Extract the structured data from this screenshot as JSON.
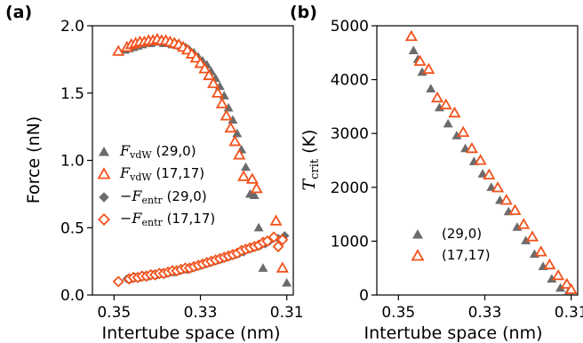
{
  "colors": {
    "gray": "#6b6b6b",
    "orange": "#f2521c"
  },
  "chart_data": [
    {
      "panel_label": "(a)",
      "type": "scatter",
      "xlabel": "Intertube space (nm)",
      "ylabel": "Force (nN)",
      "xlim": [
        0.355,
        0.3085
      ],
      "ylim": [
        0,
        2.0
      ],
      "xticks": [
        0.35,
        0.33,
        0.31
      ],
      "xticklabels": [
        "0.35",
        "0.33",
        "0.31"
      ],
      "yticks": [
        0,
        0.5,
        1.0,
        1.5,
        2.0
      ],
      "yticklabels": [
        "0.0",
        "0.5",
        "1.0",
        "1.5",
        "2.0"
      ],
      "legend_position": "center-left",
      "series": [
        {
          "name": "F_vdW (29,0)",
          "legend_math": "F",
          "legend_sub": "vdW",
          "legend_tag": "(29,0)",
          "marker": "triangle-filled",
          "color_key": "gray",
          "points": [
            [
              0.3475,
              1.82
            ],
            [
              0.3465,
              1.83
            ],
            [
              0.3455,
              1.84
            ],
            [
              0.3445,
              1.85
            ],
            [
              0.3435,
              1.86
            ],
            [
              0.3425,
              1.87
            ],
            [
              0.3415,
              1.87
            ],
            [
              0.3405,
              1.88
            ],
            [
              0.3395,
              1.88
            ],
            [
              0.3385,
              1.87
            ],
            [
              0.3375,
              1.87
            ],
            [
              0.3365,
              1.86
            ],
            [
              0.3355,
              1.86
            ],
            [
              0.3345,
              1.85
            ],
            [
              0.3335,
              1.84
            ],
            [
              0.3325,
              1.82
            ],
            [
              0.3315,
              1.8
            ],
            [
              0.3305,
              1.77
            ],
            [
              0.3295,
              1.74
            ],
            [
              0.3285,
              1.71
            ],
            [
              0.3275,
              1.66
            ],
            [
              0.3265,
              1.61
            ],
            [
              0.3255,
              1.55
            ],
            [
              0.3245,
              1.48
            ],
            [
              0.3235,
              1.39
            ],
            [
              0.3225,
              1.3
            ],
            [
              0.3215,
              1.2
            ],
            [
              0.3205,
              1.08
            ],
            [
              0.3195,
              0.95
            ],
            [
              0.3185,
              0.75
            ],
            [
              0.3175,
              0.74
            ],
            [
              0.3165,
              0.5
            ],
            [
              0.3155,
              0.2
            ],
            [
              0.31,
              0.09
            ]
          ]
        },
        {
          "name": "F_vdW (17,17)",
          "legend_math": "F",
          "legend_sub": "vdW",
          "legend_tag": "(17,17)",
          "marker": "triangle-open",
          "color_key": "orange",
          "points": [
            [
              0.349,
              1.81
            ],
            [
              0.347,
              1.84
            ],
            [
              0.346,
              1.86
            ],
            [
              0.345,
              1.87
            ],
            [
              0.344,
              1.88
            ],
            [
              0.343,
              1.88
            ],
            [
              0.342,
              1.89
            ],
            [
              0.341,
              1.89
            ],
            [
              0.34,
              1.9
            ],
            [
              0.339,
              1.89
            ],
            [
              0.338,
              1.89
            ],
            [
              0.337,
              1.88
            ],
            [
              0.336,
              1.87
            ],
            [
              0.335,
              1.86
            ],
            [
              0.334,
              1.84
            ],
            [
              0.333,
              1.82
            ],
            [
              0.332,
              1.79
            ],
            [
              0.331,
              1.76
            ],
            [
              0.33,
              1.72
            ],
            [
              0.329,
              1.68
            ],
            [
              0.328,
              1.63
            ],
            [
              0.327,
              1.57
            ],
            [
              0.326,
              1.5
            ],
            [
              0.325,
              1.42
            ],
            [
              0.324,
              1.33
            ],
            [
              0.323,
              1.24
            ],
            [
              0.322,
              1.14
            ],
            [
              0.321,
              1.04
            ],
            [
              0.32,
              0.88
            ],
            [
              0.318,
              0.86
            ],
            [
              0.317,
              0.79
            ],
            [
              0.3125,
              0.55
            ],
            [
              0.311,
              0.2
            ]
          ]
        },
        {
          "name": "-F_entr (29,0)",
          "legend_math": "−F",
          "legend_sub": "entr",
          "legend_tag": "(29,0)",
          "marker": "diamond-filled",
          "color_key": "gray",
          "points": [
            [
              0.347,
              0.12
            ],
            [
              0.346,
              0.12
            ],
            [
              0.345,
              0.13
            ],
            [
              0.344,
              0.13
            ],
            [
              0.343,
              0.14
            ],
            [
              0.342,
              0.14
            ],
            [
              0.341,
              0.15
            ],
            [
              0.34,
              0.15
            ],
            [
              0.339,
              0.16
            ],
            [
              0.338,
              0.16
            ],
            [
              0.337,
              0.17
            ],
            [
              0.336,
              0.17
            ],
            [
              0.335,
              0.18
            ],
            [
              0.334,
              0.19
            ],
            [
              0.333,
              0.19
            ],
            [
              0.332,
              0.2
            ],
            [
              0.331,
              0.21
            ],
            [
              0.33,
              0.22
            ],
            [
              0.329,
              0.23
            ],
            [
              0.328,
              0.24
            ],
            [
              0.327,
              0.25
            ],
            [
              0.326,
              0.26
            ],
            [
              0.325,
              0.27
            ],
            [
              0.324,
              0.28
            ],
            [
              0.323,
              0.29
            ],
            [
              0.322,
              0.3
            ],
            [
              0.321,
              0.31
            ],
            [
              0.32,
              0.32
            ],
            [
              0.319,
              0.34
            ],
            [
              0.318,
              0.35
            ],
            [
              0.317,
              0.36
            ],
            [
              0.316,
              0.37
            ],
            [
              0.315,
              0.38
            ],
            [
              0.314,
              0.4
            ],
            [
              0.312,
              0.42
            ],
            [
              0.3105,
              0.44
            ]
          ]
        },
        {
          "name": "-F_entr (17,17)",
          "legend_math": "−F",
          "legend_sub": "entr",
          "legend_tag": "(17,17)",
          "marker": "diamond-open",
          "color_key": "orange",
          "points": [
            [
              0.349,
              0.1
            ],
            [
              0.3465,
              0.12
            ],
            [
              0.3455,
              0.13
            ],
            [
              0.3445,
              0.13
            ],
            [
              0.3435,
              0.14
            ],
            [
              0.3425,
              0.14
            ],
            [
              0.3415,
              0.15
            ],
            [
              0.3405,
              0.15
            ],
            [
              0.3395,
              0.16
            ],
            [
              0.3385,
              0.16
            ],
            [
              0.3375,
              0.17
            ],
            [
              0.3365,
              0.18
            ],
            [
              0.3355,
              0.18
            ],
            [
              0.3345,
              0.19
            ],
            [
              0.3335,
              0.2
            ],
            [
              0.3325,
              0.2
            ],
            [
              0.3315,
              0.21
            ],
            [
              0.3305,
              0.22
            ],
            [
              0.3295,
              0.23
            ],
            [
              0.3285,
              0.24
            ],
            [
              0.3275,
              0.25
            ],
            [
              0.3265,
              0.26
            ],
            [
              0.3255,
              0.27
            ],
            [
              0.3245,
              0.28
            ],
            [
              0.3235,
              0.29
            ],
            [
              0.3225,
              0.3
            ],
            [
              0.3215,
              0.31
            ],
            [
              0.3205,
              0.33
            ],
            [
              0.3195,
              0.34
            ],
            [
              0.3185,
              0.35
            ],
            [
              0.3175,
              0.36
            ],
            [
              0.3165,
              0.37
            ],
            [
              0.3155,
              0.39
            ],
            [
              0.3145,
              0.4
            ],
            [
              0.313,
              0.43
            ],
            [
              0.312,
              0.36
            ],
            [
              0.311,
              0.41
            ]
          ]
        }
      ]
    },
    {
      "panel_label": "(b)",
      "type": "scatter",
      "xlabel": "Intertube space (nm)",
      "ylabel_math": "T",
      "ylabel_sub": "crit",
      "ylabel_unit": "(K)",
      "xlim": [
        0.355,
        0.3085
      ],
      "ylim": [
        0,
        5000
      ],
      "xticks": [
        0.35,
        0.33,
        0.31
      ],
      "xticklabels": [
        "0.35",
        "0.33",
        "0.31"
      ],
      "yticks": [
        0,
        1000,
        2000,
        3000,
        4000,
        5000
      ],
      "yticklabels": [
        "0",
        "1000",
        "2000",
        "3000",
        "4000",
        "5000"
      ],
      "legend_position": "lower-left",
      "series": [
        {
          "name": "(29,0)",
          "marker": "triangle-filled",
          "color_key": "gray",
          "points": [
            [
              0.3465,
              4540
            ],
            [
              0.3455,
              4380
            ],
            [
              0.3445,
              4140
            ],
            [
              0.3425,
              3830
            ],
            [
              0.3405,
              3480
            ],
            [
              0.3385,
              3180
            ],
            [
              0.3365,
              2960
            ],
            [
              0.3345,
              2720
            ],
            [
              0.3325,
              2480
            ],
            [
              0.3305,
              2250
            ],
            [
              0.3285,
              2000
            ],
            [
              0.3265,
              1760
            ],
            [
              0.3245,
              1550
            ],
            [
              0.3225,
              1260
            ],
            [
              0.3205,
              1010
            ],
            [
              0.3185,
              760
            ],
            [
              0.3165,
              530
            ],
            [
              0.3145,
              300
            ],
            [
              0.3125,
              130
            ],
            [
              0.3105,
              80
            ]
          ]
        },
        {
          "name": "(17,17)",
          "marker": "triangle-open",
          "color_key": "orange",
          "points": [
            [
              0.347,
              4800
            ],
            [
              0.345,
              4340
            ],
            [
              0.343,
              4190
            ],
            [
              0.341,
              3660
            ],
            [
              0.339,
              3530
            ],
            [
              0.337,
              3380
            ],
            [
              0.335,
              3020
            ],
            [
              0.333,
              2720
            ],
            [
              0.331,
              2500
            ],
            [
              0.329,
              2230
            ],
            [
              0.327,
              1990
            ],
            [
              0.325,
              1760
            ],
            [
              0.323,
              1570
            ],
            [
              0.321,
              1310
            ],
            [
              0.319,
              1080
            ],
            [
              0.317,
              800
            ],
            [
              0.315,
              560
            ],
            [
              0.313,
              360
            ],
            [
              0.311,
              200
            ],
            [
              0.31,
              100
            ]
          ]
        }
      ]
    }
  ]
}
